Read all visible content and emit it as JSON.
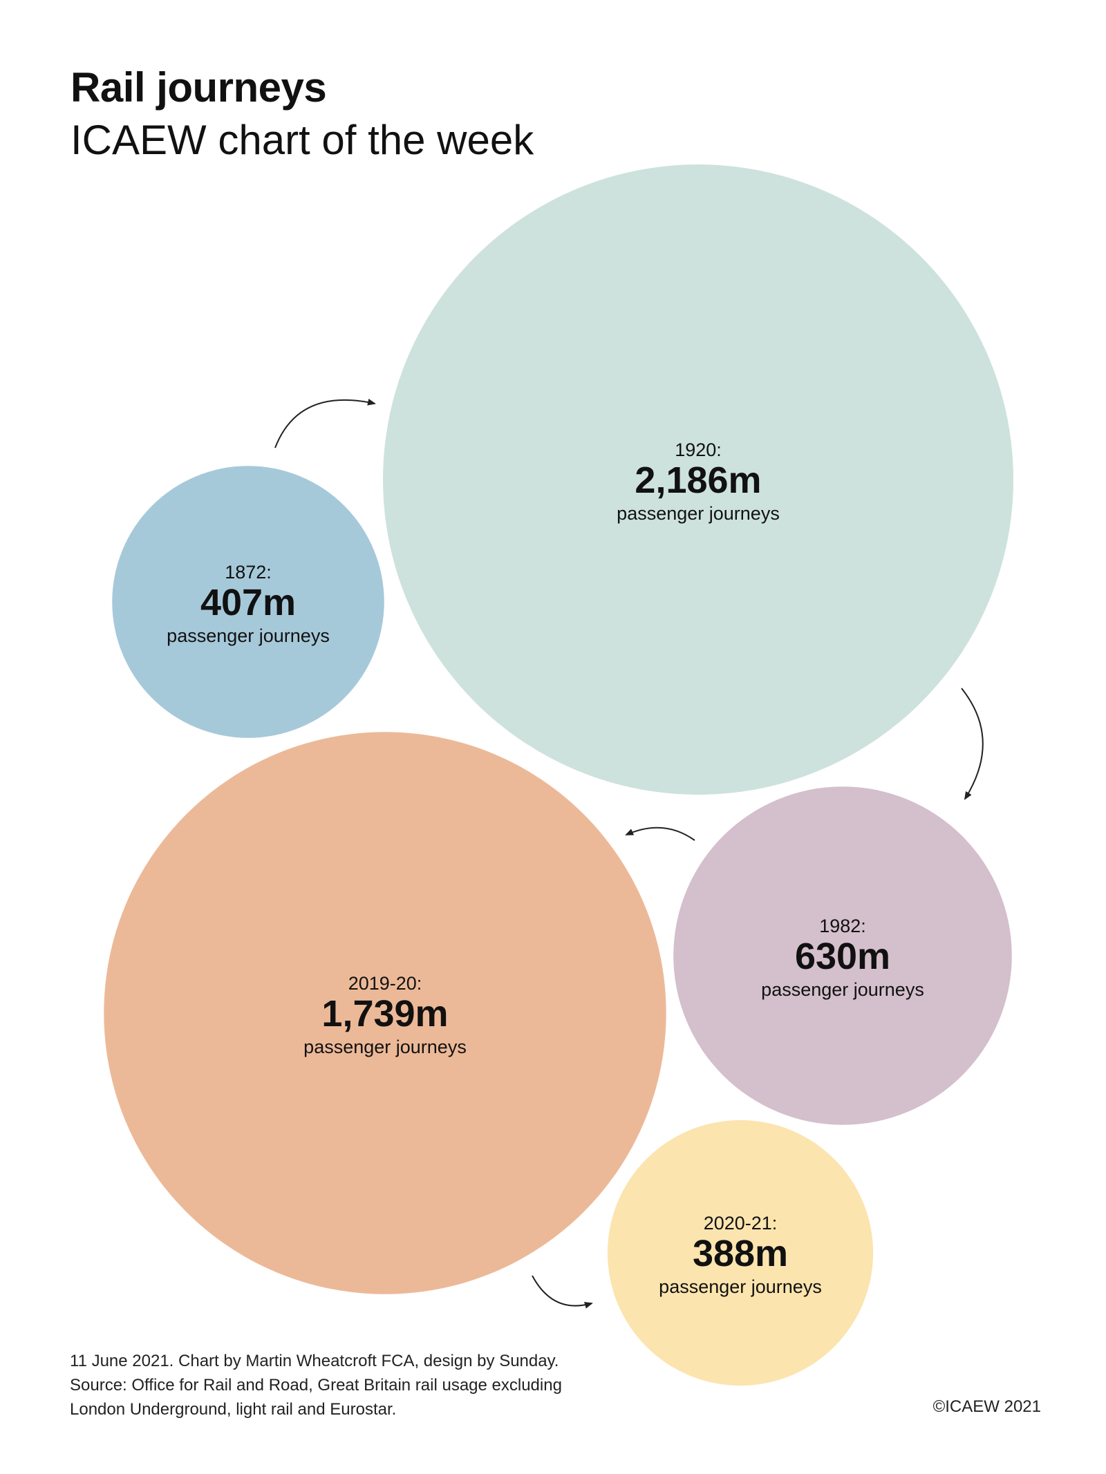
{
  "header": {
    "title": "Rail journeys",
    "subtitle": "ICAEW chart of the week"
  },
  "chart_data": {
    "type": "bubble",
    "unit_label": "passenger journeys",
    "points": [
      {
        "label": "1872:",
        "value_label": "407m",
        "value": 407,
        "color": "#a6c9da"
      },
      {
        "label": "1920:",
        "value_label": "2,186m",
        "value": 2186,
        "color": "#cde2dc"
      },
      {
        "label": "1982:",
        "value_label": "630m",
        "value": 630,
        "color": "#d4bfcc"
      },
      {
        "label": "2019-20:",
        "value_label": "1,739m",
        "value": 1739,
        "color": "#ecb998"
      },
      {
        "label": "2020-21:",
        "value_label": "388m",
        "value": 388,
        "color": "#fce4ae"
      }
    ]
  },
  "footer": {
    "line1": "11 June 2021.   Chart by Martin Wheatcroft FCA, design by Sunday.",
    "line2": "Source: Office for Rail and Road, Great Britain rail usage excluding",
    "line3": "London Underground, light rail and Eurostar.",
    "copyright": "©ICAEW 2021"
  }
}
